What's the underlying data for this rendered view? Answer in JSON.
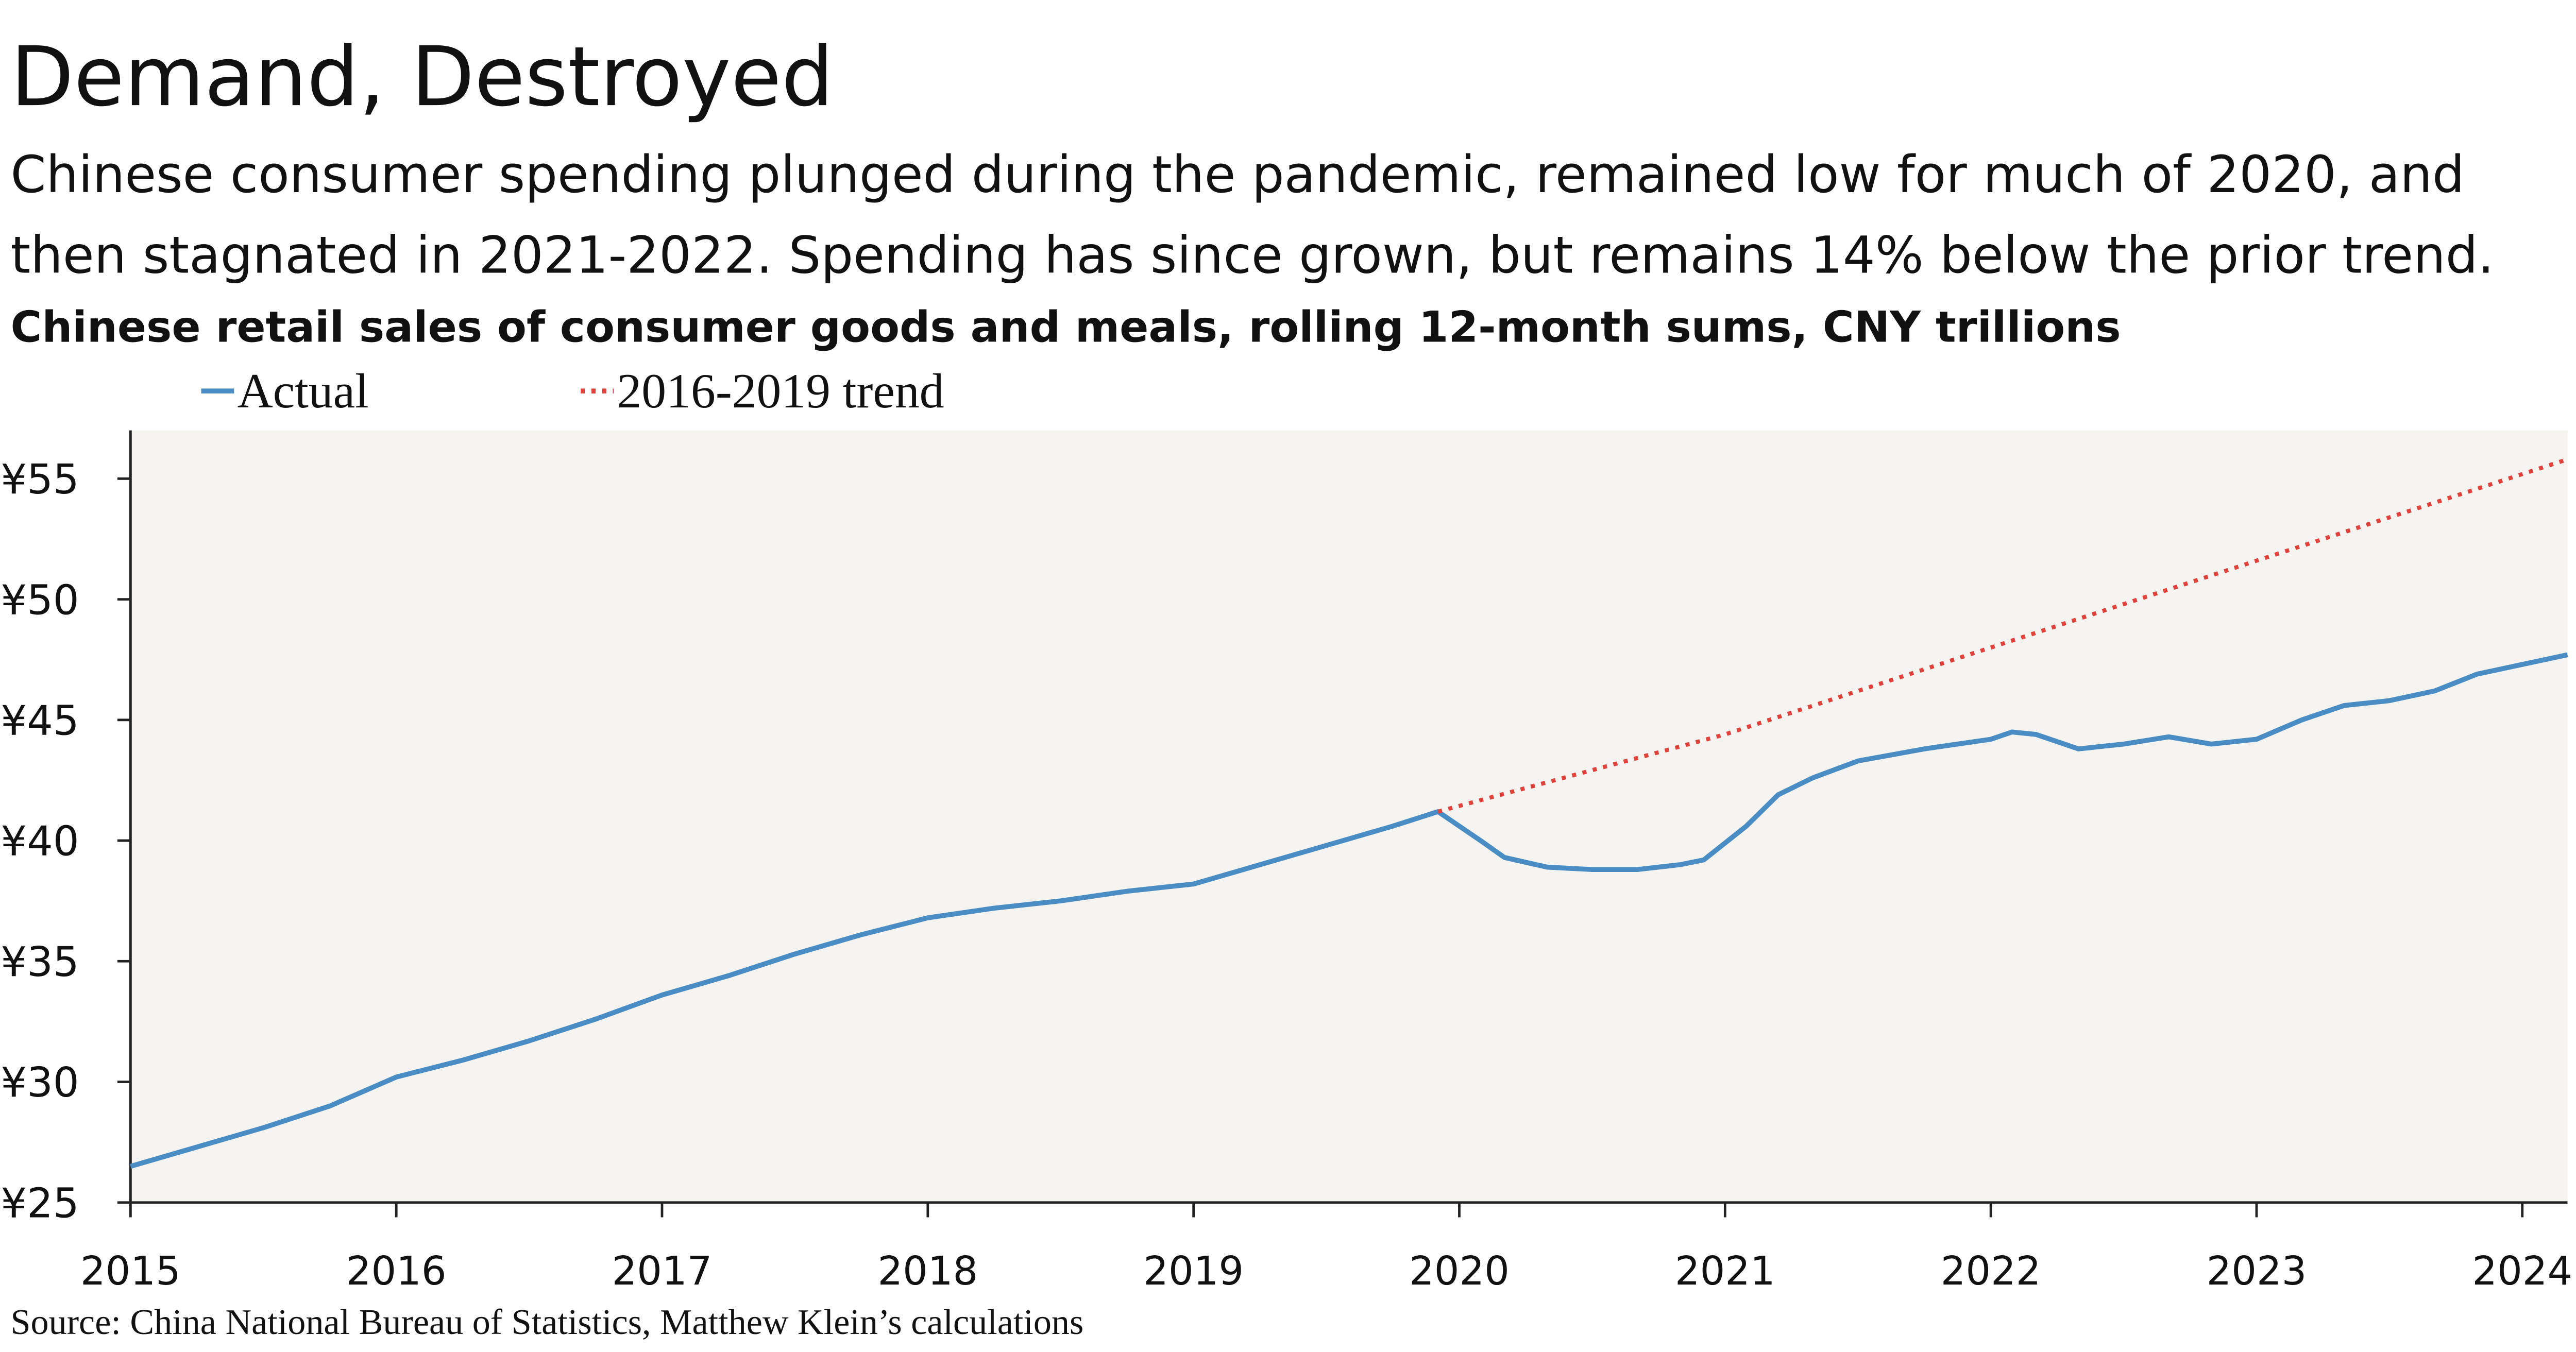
{
  "chart_data": {
    "type": "line",
    "title": "Demand, Destroyed",
    "subtitle": [
      "Chinese consumer spending plunged during the pandemic, remained low for much of 2020, and",
      "then stagnated in 2021-2022. Spending has since grown, but remains 14% below the prior trend."
    ],
    "chart_title": "Chinese retail sales of consumer goods and meals, rolling 12-month sums, CNY trillions",
    "source": "Source: China National Bureau of Statistics, Matthew Klein’s calculations",
    "xlim": [
      2015,
      2024.17
    ],
    "xticks": [
      2015,
      2016,
      2017,
      2018,
      2019,
      2020,
      2021,
      2022,
      2023,
      2024
    ],
    "ylim": [
      25,
      57
    ],
    "yticks": [
      {
        "value": 25,
        "label": "¥25"
      },
      {
        "value": 30,
        "label": "¥30"
      },
      {
        "value": 35,
        "label": "¥35"
      },
      {
        "value": 40,
        "label": "¥40"
      },
      {
        "value": 45,
        "label": "¥45"
      },
      {
        "value": 50,
        "label": "¥50"
      },
      {
        "value": 55,
        "label": "¥55"
      }
    ],
    "grid": false,
    "background": "#f5f4f0",
    "series": [
      {
        "name": "Actual",
        "color": "#4a8cc4",
        "style": "solid",
        "x": [
          2015,
          2015.25,
          2015.5,
          2015.75,
          2016,
          2016.25,
          2016.5,
          2016.75,
          2017,
          2017.25,
          2017.5,
          2017.75,
          2018,
          2018.25,
          2018.5,
          2018.75,
          2019,
          2019.25,
          2019.5,
          2019.75,
          2019.92,
          2020.08,
          2020.17,
          2020.33,
          2020.5,
          2020.67,
          2020.83,
          2020.92,
          2021.08,
          2021.2,
          2021.33,
          2021.5,
          2021.75,
          2022,
          2022.08,
          2022.17,
          2022.33,
          2022.5,
          2022.67,
          2022.83,
          2023,
          2023.17,
          2023.33,
          2023.5,
          2023.67,
          2023.83,
          2024,
          2024.17
        ],
        "values": [
          26.5,
          27.3,
          28.1,
          29.0,
          30.2,
          30.9,
          31.7,
          32.6,
          33.6,
          34.4,
          35.3,
          36.1,
          36.8,
          37.2,
          37.5,
          37.9,
          38.2,
          39.0,
          39.8,
          40.6,
          41.2,
          40.0,
          39.3,
          38.9,
          38.8,
          38.8,
          39.0,
          39.2,
          40.6,
          41.9,
          42.6,
          43.3,
          43.8,
          44.2,
          44.5,
          44.4,
          43.8,
          44.0,
          44.3,
          44.0,
          44.2,
          45.0,
          45.6,
          45.8,
          46.2,
          46.9,
          47.3,
          47.7
        ]
      },
      {
        "name": "2016-2019 trend",
        "color": "#e0413a",
        "style": "dotted",
        "x": [
          2019.92,
          2021,
          2022,
          2023,
          2024.17
        ],
        "values": [
          41.2,
          44.4,
          48.0,
          51.6,
          55.8
        ]
      }
    ]
  }
}
